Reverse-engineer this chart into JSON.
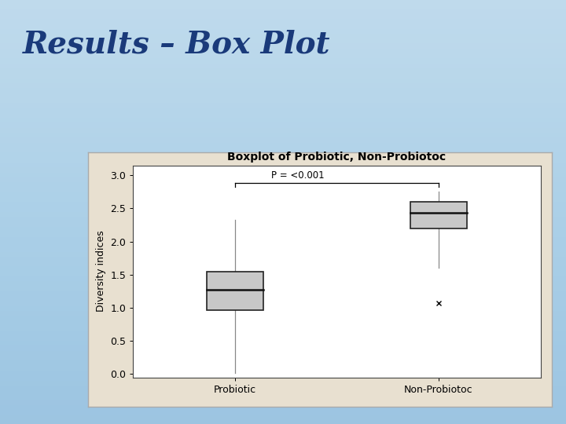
{
  "title": "Boxplot of Probiotic, Non-Probiotoc",
  "slide_title": "Results – Box Plot",
  "ylabel": "Diversity indices",
  "categories": [
    "Probiotic",
    "Non-Probiotoc"
  ],
  "probiotic": {
    "median": 1.27,
    "q1": 0.97,
    "q3": 1.55,
    "whisker_low": 0.02,
    "whisker_high": 2.33,
    "fliers": []
  },
  "nonprobiotic": {
    "median": 2.44,
    "q1": 2.2,
    "q3": 2.6,
    "whisker_low": 1.6,
    "whisker_high": 2.75,
    "fliers": [
      1.07
    ]
  },
  "ylim": [
    -0.05,
    3.15
  ],
  "yticks": [
    0.0,
    0.5,
    1.0,
    1.5,
    2.0,
    2.5,
    3.0
  ],
  "pvalue_text": "P = <0.001",
  "box_color": "#c8c8c8",
  "box_edge_color": "#222222",
  "median_color": "#111111",
  "whisker_color": "#888888",
  "background_slide_top": "#d6eaf8",
  "background_slide_bottom": "#b8d4e8",
  "background_beige": "#e8e0d0",
  "plot_area_bg": "#ffffff",
  "title_color": "#1a3a7a",
  "title_fontsize": 28,
  "axis_fontsize": 9,
  "chart_title_fontsize": 10,
  "box_width": 0.28
}
